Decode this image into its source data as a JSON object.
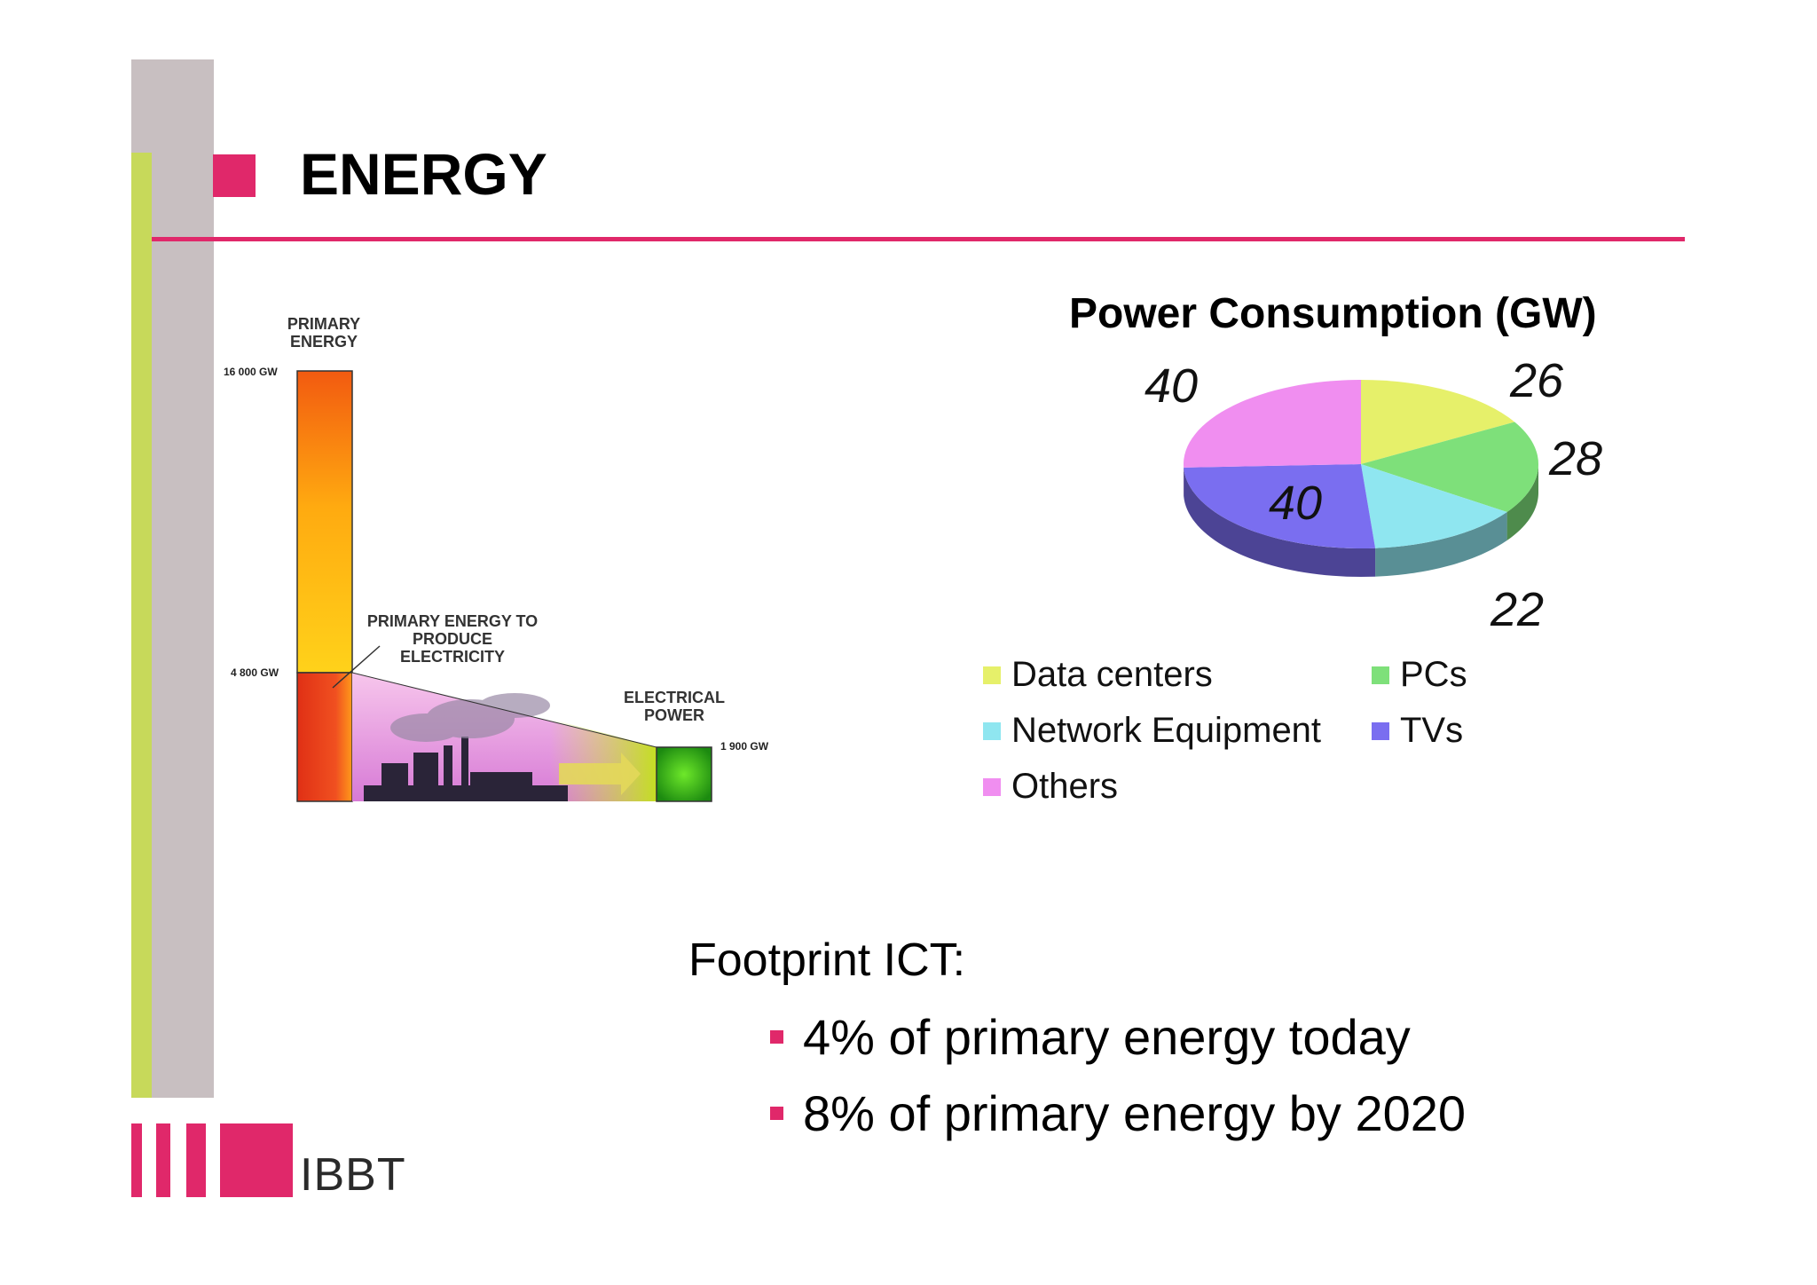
{
  "slide": {
    "title": "ENERGY",
    "accent_color": "#e0286a",
    "secondary_color": "#c7d95a",
    "sidebar_color": "#c8bfc1"
  },
  "diagram": {
    "primary_label": "PRIMARY ENERGY",
    "primary_value": "16 000 GW",
    "electricity_label": "PRIMARY ENERGY TO PRODUCE ELECTRICITY",
    "electricity_value": "4 800 GW",
    "electrical_label": "ELECTRICAL POWER",
    "electrical_value": "1 900 GW"
  },
  "chart_data": {
    "type": "pie",
    "title": "Power Consumption (GW)",
    "categories": [
      "Data centers",
      "PCs",
      "Network Equipment",
      "TVs",
      "Others"
    ],
    "values": [
      26,
      28,
      22,
      40,
      40
    ],
    "colors": [
      "#e6f06a",
      "#7ee07a",
      "#8fe6f0",
      "#7a6ef0",
      "#f08ef0"
    ],
    "legend_position": "bottom",
    "style": "3d"
  },
  "footprint": {
    "heading": "Footprint ICT:",
    "bullets": [
      "4% of primary energy today",
      "8% of primary energy by 2020"
    ]
  },
  "logo": {
    "text": "IBBT"
  }
}
